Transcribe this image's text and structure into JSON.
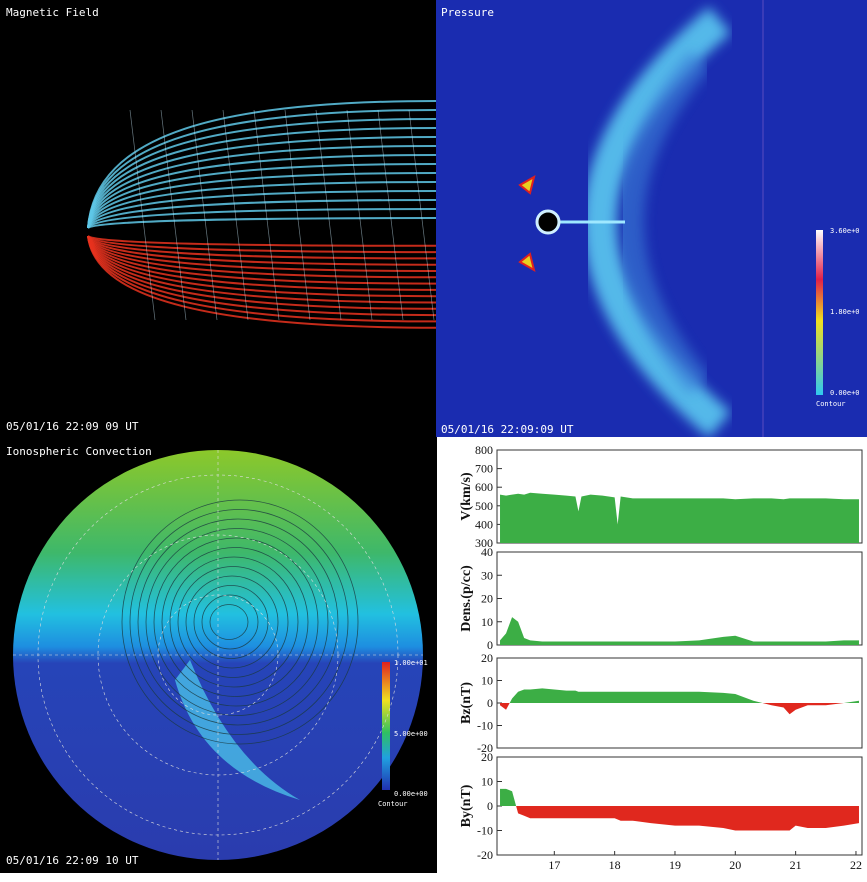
{
  "panels": {
    "magnetic_field": {
      "title": "Magnetic Field",
      "timestamp": "05/01/16 22:09 09 UT"
    },
    "pressure": {
      "title": "Pressure",
      "timestamp": "05/01/16 22:09:09 UT",
      "colorbar": [
        "3.60e+0",
        "1.80e+0",
        "0.00e+0"
      ],
      "colorbar_title": "Contour"
    },
    "ionospheric_convection": {
      "title": "Ionospheric Convection",
      "timestamp": "05/01/16 22:09 10 UT",
      "colorbar": [
        "1.00e+01",
        "5.00e+00",
        "0.00e+00"
      ],
      "colorbar_title": "Contour"
    }
  },
  "chart_data": [
    {
      "type": "area",
      "y_label": "V(km/s)",
      "colors": {
        "positive": "#3cae45"
      },
      "x": [
        16.1,
        16.2,
        16.3,
        16.4,
        16.5,
        16.6,
        16.8,
        17.0,
        17.2,
        17.35,
        17.4,
        17.45,
        17.6,
        17.8,
        18.0,
        18.05,
        18.1,
        18.3,
        18.6,
        19.0,
        19.4,
        19.8,
        20.0,
        20.3,
        20.6,
        20.8,
        20.9,
        21.0,
        21.2,
        21.5,
        21.8,
        22.05
      ],
      "values": [
        560,
        555,
        560,
        565,
        560,
        570,
        565,
        560,
        555,
        550,
        470,
        550,
        560,
        555,
        545,
        400,
        550,
        540,
        540,
        540,
        540,
        540,
        535,
        540,
        540,
        535,
        540,
        540,
        540,
        540,
        535,
        535
      ],
      "xlim": [
        16.05,
        22.1
      ],
      "ylim": [
        300,
        800
      ],
      "yticks": [
        300,
        400,
        500,
        600,
        700,
        800
      ]
    },
    {
      "type": "area",
      "y_label": "Dens.(p/cc)",
      "colors": {
        "positive": "#3cae45"
      },
      "x": [
        16.1,
        16.2,
        16.3,
        16.4,
        16.5,
        16.6,
        16.8,
        17.0,
        17.2,
        17.35,
        17.4,
        17.45,
        17.6,
        17.8,
        18.0,
        18.05,
        18.1,
        18.3,
        18.6,
        19.0,
        19.4,
        19.8,
        20.0,
        20.3,
        20.6,
        20.8,
        20.9,
        21.0,
        21.2,
        21.5,
        21.8,
        22.05
      ],
      "values": [
        2,
        5,
        12,
        10,
        3,
        2,
        1.5,
        1.5,
        1.5,
        1.5,
        1.5,
        1.5,
        1.5,
        1.5,
        1.5,
        1.5,
        1.5,
        1.5,
        1.5,
        1.5,
        2,
        3.5,
        4,
        1.5,
        1.5,
        1.5,
        1.5,
        1.5,
        1.5,
        1.5,
        2,
        2
      ],
      "xlim": [
        16.05,
        22.1
      ],
      "ylim": [
        0,
        40
      ],
      "yticks": [
        0,
        10,
        20,
        30,
        40
      ]
    },
    {
      "type": "area",
      "y_label": "Bz(nT)",
      "colors": {
        "positive": "#3cae45",
        "negative": "#e0281e"
      },
      "x": [
        16.1,
        16.2,
        16.3,
        16.4,
        16.5,
        16.6,
        16.8,
        17.0,
        17.2,
        17.35,
        17.4,
        17.45,
        17.6,
        17.8,
        18.0,
        18.05,
        18.1,
        18.3,
        18.6,
        19.0,
        19.4,
        19.8,
        20.0,
        20.3,
        20.6,
        20.8,
        20.9,
        21.0,
        21.2,
        21.5,
        21.8,
        22.05
      ],
      "values": [
        -1,
        -3,
        2,
        5,
        6,
        6,
        6.5,
        6,
        5.5,
        5.5,
        5,
        5,
        5,
        5,
        5,
        5,
        5,
        5,
        5,
        5,
        5,
        4.5,
        4,
        1,
        -1,
        -2,
        -5,
        -3,
        -1,
        -1,
        0,
        1
      ],
      "xlim": [
        16.05,
        22.1
      ],
      "ylim": [
        -20,
        20
      ],
      "yticks": [
        -20,
        -10,
        0,
        10,
        20
      ]
    },
    {
      "type": "area",
      "y_label": "By(nT)",
      "colors": {
        "positive": "#3cae45",
        "negative": "#e0281e"
      },
      "x": [
        16.1,
        16.2,
        16.3,
        16.4,
        16.5,
        16.6,
        16.8,
        17.0,
        17.2,
        17.35,
        17.4,
        17.45,
        17.6,
        17.8,
        18.0,
        18.05,
        18.1,
        18.3,
        18.6,
        19.0,
        19.4,
        19.8,
        20.0,
        20.3,
        20.6,
        20.8,
        20.9,
        21.0,
        21.2,
        21.5,
        21.8,
        22.05
      ],
      "values": [
        7,
        7,
        6,
        -3,
        -4,
        -5,
        -5,
        -5,
        -5,
        -5,
        -5,
        -5,
        -5,
        -5,
        -5,
        -5.5,
        -6,
        -6,
        -7,
        -8,
        -8,
        -9,
        -10,
        -10,
        -10,
        -10,
        -10,
        -8,
        -9,
        -9,
        -8,
        -7
      ],
      "xlim": [
        16.05,
        22.1
      ],
      "ylim": [
        -20,
        20
      ],
      "yticks": [
        -20,
        -10,
        0,
        10,
        20
      ],
      "xticks": [
        17,
        18,
        19,
        20,
        21,
        22
      ]
    }
  ]
}
